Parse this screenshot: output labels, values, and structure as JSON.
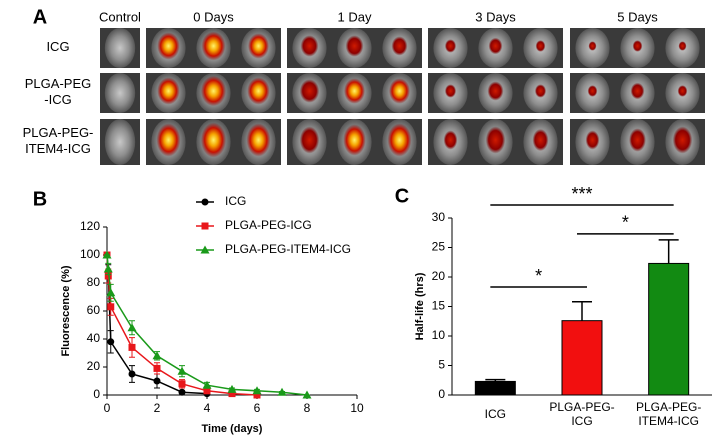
{
  "image_panel": {
    "label": "A",
    "columns": [
      "Control",
      "0 Days",
      "1 Day",
      "3 Days",
      "5 Days"
    ],
    "rows": [
      [
        "ICG"
      ],
      [
        "PLGA-PEG",
        "-ICG"
      ],
      [
        "PLGA-PEG-",
        "ITEM4-ICG"
      ]
    ]
  },
  "chart_data": [
    {
      "type": "line",
      "label": "B",
      "xlabel": "Time (days)",
      "ylabel": "Fluorescence (%)",
      "xlim": [
        0,
        10
      ],
      "xticks": [
        0,
        2,
        4,
        6,
        8,
        10
      ],
      "ylim": [
        0,
        120
      ],
      "yticks": [
        0,
        20,
        40,
        60,
        80,
        100,
        120
      ],
      "series": [
        {
          "name": "ICG",
          "color": "#000000",
          "marker": "circle",
          "x": [
            0,
            0.05,
            0.15,
            1,
            2,
            3,
            4
          ],
          "values": [
            100,
            88,
            38,
            15,
            10,
            2,
            1
          ],
          "errors": [
            0,
            5,
            8,
            6,
            5,
            1,
            0.5
          ]
        },
        {
          "name": "PLGA-PEG-ICG",
          "color": "#e8171b",
          "marker": "square",
          "x": [
            0,
            0.05,
            0.15,
            1,
            2,
            3,
            4,
            5,
            6
          ],
          "values": [
            100,
            85,
            63,
            34,
            19,
            8,
            3,
            1,
            0
          ],
          "errors": [
            0,
            5,
            6,
            7,
            4,
            3,
            1.5,
            0.5,
            0
          ]
        },
        {
          "name": "PLGA-PEG-ITEM4-ICG",
          "color": "#1a9a1a",
          "marker": "triangle",
          "x": [
            0,
            0.05,
            0.15,
            1,
            2,
            3,
            4,
            5,
            6,
            7,
            8
          ],
          "values": [
            100,
            90,
            73,
            48,
            28,
            17,
            7,
            4,
            3,
            2,
            0
          ],
          "errors": [
            0,
            4,
            6,
            5,
            3,
            4,
            2,
            1,
            1,
            0.5,
            0
          ]
        }
      ]
    },
    {
      "type": "bar",
      "label": "C",
      "ylabel": "Half-life (hrs)",
      "categories": [
        [
          "ICG"
        ],
        [
          "PLGA-PEG-",
          "ICG"
        ],
        [
          "PLGA-PEG-",
          "ITEM4-ICG"
        ]
      ],
      "values": [
        2.3,
        12.6,
        22.3
      ],
      "errors": [
        0.3,
        3.2,
        4.0
      ],
      "colors": [
        "#000000",
        "#f20f0f",
        "#128a12"
      ],
      "ylim": [
        0,
        30
      ],
      "yticks": [
        0,
        5,
        10,
        15,
        20,
        25,
        30
      ],
      "significance": [
        {
          "from": 0,
          "to": 1,
          "label": "*",
          "y": 18.3
        },
        {
          "from": 1,
          "to": 2,
          "label": "*",
          "y": 27.3
        },
        {
          "from": 0,
          "to": 2,
          "label": "***",
          "y": 32.2
        }
      ]
    }
  ]
}
